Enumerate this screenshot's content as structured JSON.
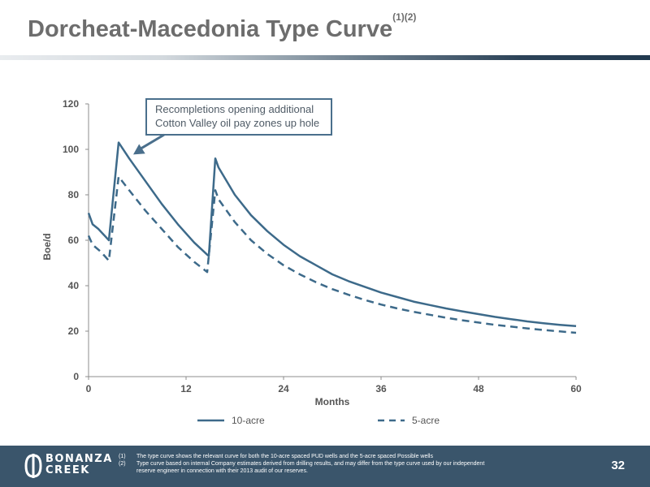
{
  "title": "Dorcheat-Macedonia Type Curve",
  "title_sup": "(1)(2)",
  "chart_data": {
    "type": "line",
    "ylabel": "Boe/d",
    "xlabel": "Months",
    "xlim": [
      0,
      60
    ],
    "ylim": [
      0,
      120
    ],
    "x_ticks": [
      "0",
      "12",
      "24",
      "36",
      "48",
      "60"
    ],
    "y_ticks": [
      "0",
      "20",
      "40",
      "60",
      "80",
      "100",
      "120"
    ],
    "grid": false,
    "legend_position": "bottom",
    "annotation": {
      "lines": [
        "Recompletions opening additional",
        "Cotton Valley oil pay zones up hole"
      ],
      "points_to": [
        3.7,
        102
      ]
    },
    "series": [
      {
        "name": "10-acre",
        "style": "solid",
        "color": "#3d6a8a",
        "points": [
          [
            0,
            72
          ],
          [
            0.5,
            67
          ],
          [
            1.2,
            65
          ],
          [
            2.5,
            60
          ],
          [
            3.7,
            103
          ],
          [
            5,
            96
          ],
          [
            7,
            86
          ],
          [
            9,
            76
          ],
          [
            11,
            67
          ],
          [
            13,
            59
          ],
          [
            14.8,
            53
          ],
          [
            15.6,
            96
          ],
          [
            16,
            92
          ],
          [
            18,
            80
          ],
          [
            20,
            71
          ],
          [
            22,
            64
          ],
          [
            24,
            58
          ],
          [
            26,
            53
          ],
          [
            28,
            49
          ],
          [
            30,
            45
          ],
          [
            32,
            42
          ],
          [
            34,
            39.5
          ],
          [
            36,
            37
          ],
          [
            38,
            35
          ],
          [
            40,
            33
          ],
          [
            42,
            31.5
          ],
          [
            44,
            30
          ],
          [
            46,
            28.7
          ],
          [
            48,
            27.5
          ],
          [
            50,
            26.3
          ],
          [
            52,
            25.3
          ],
          [
            54,
            24.3
          ],
          [
            56,
            23.5
          ],
          [
            58,
            22.8
          ],
          [
            60,
            22.2
          ]
        ]
      },
      {
        "name": "5-acre",
        "style": "dashed",
        "color": "#3d6a8a",
        "points": [
          [
            0,
            62
          ],
          [
            0.5,
            58
          ],
          [
            1.5,
            55
          ],
          [
            2.5,
            51
          ],
          [
            3.7,
            88
          ],
          [
            5,
            82
          ],
          [
            7,
            73
          ],
          [
            9,
            65
          ],
          [
            11,
            57
          ],
          [
            13,
            50.5
          ],
          [
            14.6,
            46
          ],
          [
            15.6,
            82
          ],
          [
            16,
            78
          ],
          [
            18,
            68
          ],
          [
            20,
            60
          ],
          [
            22,
            54
          ],
          [
            24,
            49
          ],
          [
            26,
            45
          ],
          [
            28,
            41.5
          ],
          [
            30,
            38.5
          ],
          [
            32,
            36
          ],
          [
            34,
            33.7
          ],
          [
            36,
            31.7
          ],
          [
            38,
            30
          ],
          [
            40,
            28.5
          ],
          [
            42,
            27.2
          ],
          [
            44,
            25.9
          ],
          [
            46,
            24.8
          ],
          [
            48,
            23.8
          ],
          [
            50,
            22.8
          ],
          [
            52,
            22
          ],
          [
            54,
            21.2
          ],
          [
            56,
            20.5
          ],
          [
            58,
            19.9
          ],
          [
            60,
            19.3
          ]
        ]
      }
    ]
  },
  "logo": {
    "line1": "BONANZA",
    "line2": "CREEK"
  },
  "footnotes": [
    {
      "num": "(1)",
      "text": "The type curve shows the relevant curve for both the 10-acre spaced PUD wells and the 5-acre spaced Possible wells"
    },
    {
      "num": "(2)",
      "text": "Type curve based on internal Company estimates derived from drilling results, and may differ from the type curve used by our independent",
      "cont": "reserve engineer in connection with their 2013 audit of our reserves."
    }
  ],
  "page_number": "32"
}
